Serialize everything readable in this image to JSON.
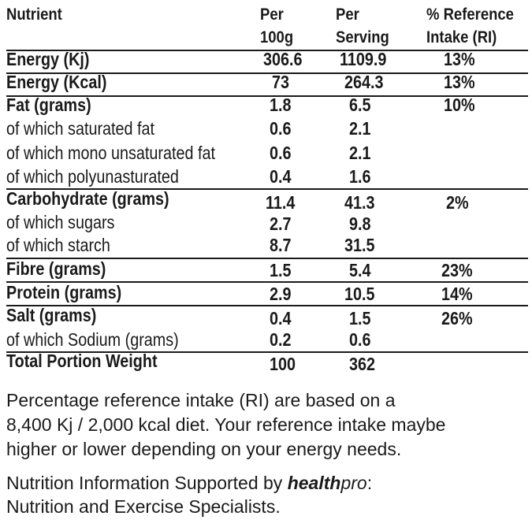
{
  "table": {
    "headers": {
      "nutrient": "Nutrient",
      "per100": [
        "Per",
        "100g"
      ],
      "perServing": [
        "Per",
        "Serving"
      ],
      "ri": [
        "% Reference",
        "Intake (RI)"
      ]
    },
    "rows": [
      {
        "label": "Energy (Kj)",
        "bold": true,
        "per100": "306.6",
        "serving": "1109.9",
        "ri": "13%"
      },
      {
        "label": "Energy (Kcal)",
        "bold": true,
        "per100": "73",
        "serving": "264.3",
        "ri": "13%"
      },
      {
        "label": "Fat (grams)",
        "bold": true,
        "per100": "1.8",
        "serving": "6.5",
        "ri": "10%"
      },
      {
        "label": "of which saturated fat",
        "bold": false,
        "per100": "0.6",
        "serving": "2.1",
        "ri": ""
      },
      {
        "label": "of which mono unsaturated fat",
        "bold": false,
        "per100": "0.6",
        "serving": "2.1",
        "ri": ""
      },
      {
        "label": "of which polyunasturated",
        "bold": false,
        "per100": "0.4",
        "serving": "1.6",
        "ri": ""
      },
      {
        "label": "Carbohydrate (grams)",
        "bold": true,
        "per100": "11.4",
        "serving": "41.3",
        "ri": "2%"
      },
      {
        "label": "of which sugars",
        "bold": false,
        "per100": "2.7",
        "serving": "9.8",
        "ri": ""
      },
      {
        "label": "of which starch",
        "bold": false,
        "per100": "8.7",
        "serving": "31.5",
        "ri": ""
      },
      {
        "label": "Fibre (grams)",
        "bold": true,
        "per100": "1.5",
        "serving": "5.4",
        "ri": "23%"
      },
      {
        "label": "Protein (grams)",
        "bold": true,
        "per100": "2.9",
        "serving": "10.5",
        "ri": "14%"
      },
      {
        "label": "Salt (grams)",
        "bold": true,
        "per100": "0.4",
        "serving": "1.5",
        "ri": "26%"
      },
      {
        "label": "of which Sodium (grams)",
        "bold": false,
        "per100": "0.2",
        "serving": "0.6",
        "ri": ""
      },
      {
        "label": "Total Portion Weight",
        "bold": true,
        "per100": "100",
        "serving": "362",
        "ri": ""
      }
    ]
  },
  "notes": {
    "ri_lines": [
      "Percentage reference intake (RI) are based on a",
      "8,400 Kj / 2,000 kcal diet. Your reference intake maybe",
      "higher or lower depending on your energy needs."
    ],
    "support_prefix": "Nutrition Information Supported by ",
    "brand_bold": "health",
    "brand_italic": "pro",
    "support_suffix": ":",
    "support_line2": "Nutrition and Exercise Specialists."
  }
}
